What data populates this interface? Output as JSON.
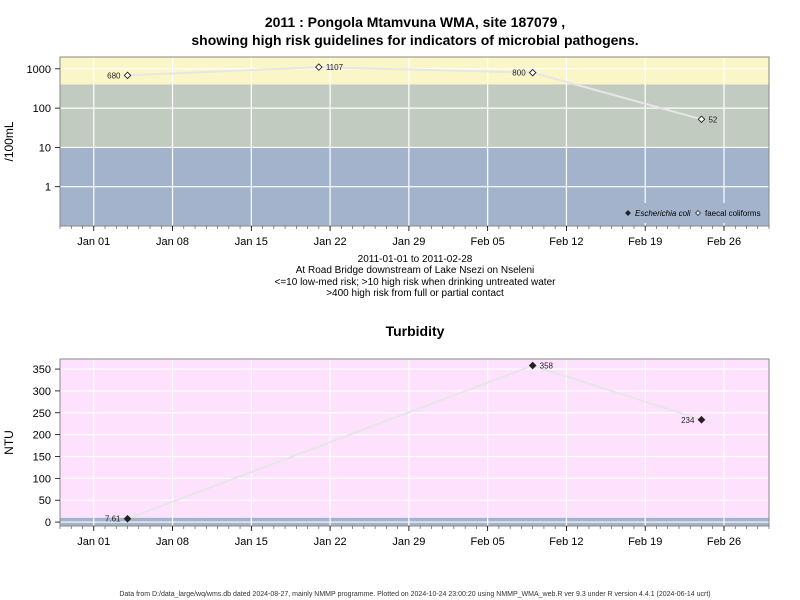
{
  "page": {
    "title_line1": "2011 : Pongola Mtamvuna WMA, site 187079 ,",
    "title_line2": "showing high risk guidelines for indicators of microbial pathogens.",
    "sub_lines": [
      "2011-01-01 to 2011-02-28",
      "At Road Bridge downstream of Lake Nsezi on Nseleni",
      "<=10 low-med risk; >10 high risk when drinking untreated water",
      ">400 high risk from full or partial contact"
    ],
    "footer": "Data from D:/data_large/wq/wms.db dated 2024-08-27, mainly NMMP programme. Plotted on 2024-10-24 23:00:20 using NMMP_WMA_web.R ver 9.3 under R version 4.4.1 (2024-06-14 ucrt)"
  },
  "chart_data": [
    {
      "type": "scatter",
      "scale": "log",
      "ylabel": "/100mL",
      "x_ticks": [
        "2011-01-01",
        "2011-01-08",
        "2011-01-15",
        "2011-01-22",
        "2011-01-29",
        "2011-02-05",
        "2011-02-12",
        "2011-02-19",
        "2011-02-26"
      ],
      "x_tick_labels": [
        "Jan 01",
        "Jan 08",
        "Jan 15",
        "Jan 22",
        "Jan 29",
        "Feb 05",
        "Feb 12",
        "Feb 19",
        "Feb 26"
      ],
      "xlim": [
        "2010-12-29",
        "2011-03-02"
      ],
      "ylim": [
        0.1,
        2000
      ],
      "y_ticks": [
        1,
        10,
        100,
        1000
      ],
      "y_tick_labels": [
        "1",
        "10",
        "100",
        "1000"
      ],
      "bands": [
        {
          "from": 0.1,
          "to": 10,
          "color": "#a3b3cc"
        },
        {
          "from": 10,
          "to": 400,
          "color": "#c2cbbf"
        },
        {
          "from": 400,
          "to": 2000,
          "color": "#fbf6c7"
        }
      ],
      "legend_position": "bottom-right",
      "series": [
        {
          "name": "Escherichia coli",
          "marker": "filled-diamond",
          "x": [],
          "y": [],
          "labels": []
        },
        {
          "name": "faecal coliforms",
          "marker": "open-diamond",
          "x": [
            "2011-01-04",
            "2011-01-21",
            "2011-02-09",
            "2011-02-24"
          ],
          "y": [
            680,
            1107,
            800,
            52
          ],
          "labels": [
            "680",
            "1107",
            "800",
            "52"
          ]
        }
      ]
    },
    {
      "type": "scatter",
      "title": "Turbidity",
      "ylabel": "NTU",
      "x_ticks": [
        "2011-01-01",
        "2011-01-08",
        "2011-01-15",
        "2011-01-22",
        "2011-01-29",
        "2011-02-05",
        "2011-02-12",
        "2011-02-19",
        "2011-02-26"
      ],
      "x_tick_labels": [
        "Jan 01",
        "Jan 08",
        "Jan 15",
        "Jan 22",
        "Jan 29",
        "Feb 05",
        "Feb 12",
        "Feb 19",
        "Feb 26"
      ],
      "xlim": [
        "2010-12-29",
        "2011-03-02"
      ],
      "ylim": [
        -9,
        373
      ],
      "y_ticks": [
        0,
        50,
        100,
        150,
        200,
        250,
        300,
        350
      ],
      "y_tick_labels": [
        "0",
        "50",
        "100",
        "150",
        "200",
        "250",
        "300",
        "350"
      ],
      "bands": [
        {
          "from": -9,
          "to": 10,
          "color": "#a3b3cc"
        },
        {
          "from": 10,
          "to": 373,
          "color": "#fde1fd"
        }
      ],
      "series": [
        {
          "name": "",
          "marker": "filled-diamond",
          "x": [
            "2011-01-04",
            "2011-02-09",
            "2011-02-24"
          ],
          "y": [
            7.61,
            358,
            234
          ],
          "labels": [
            "7.61",
            "358",
            "234"
          ]
        }
      ]
    }
  ]
}
